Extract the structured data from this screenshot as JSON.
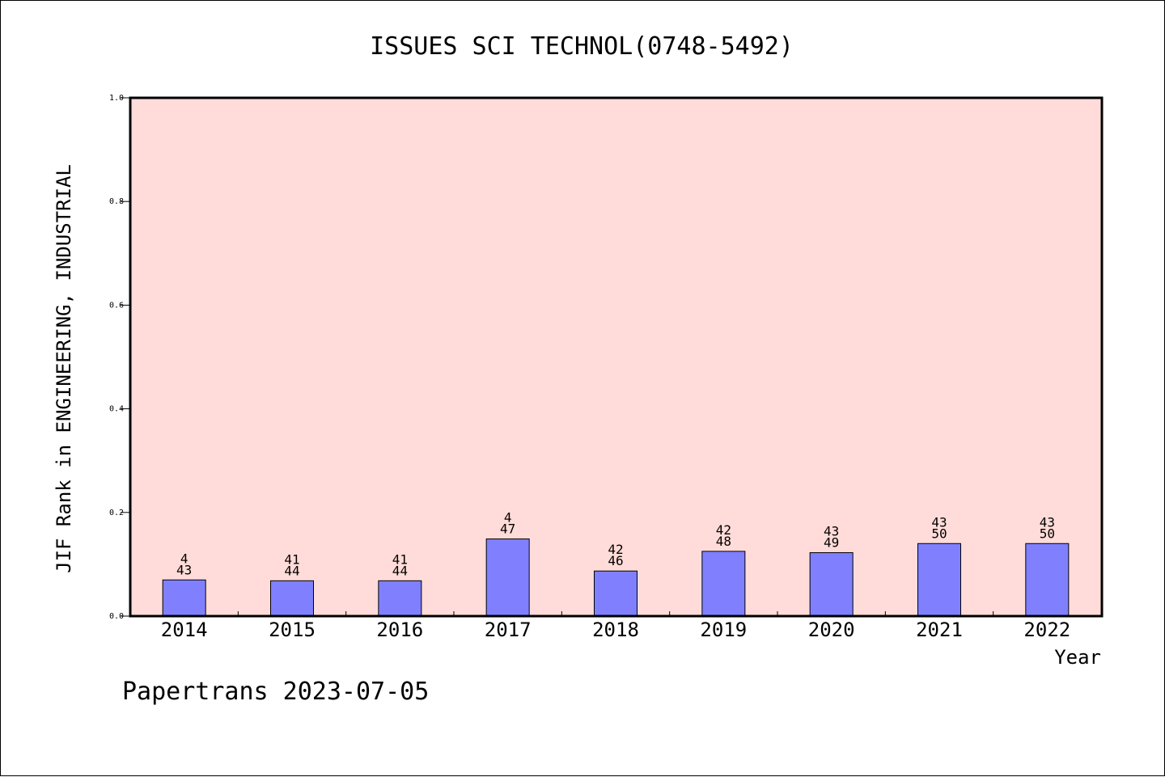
{
  "chart_data": {
    "type": "bar",
    "title": "ISSUES SCI TECHNOL(0748-5492)",
    "xlabel": "Year",
    "ylabel": "JIF Rank in ENGINEERING, INDUSTRIAL",
    "ylim": [
      0,
      1.0
    ],
    "yticks": [
      "0.0",
      "0.2",
      "0.4",
      "0.6",
      "0.8",
      "1.0"
    ],
    "categories": [
      "2014",
      "2015",
      "2016",
      "2017",
      "2018",
      "2019",
      "2020",
      "2021",
      "2022"
    ],
    "values": [
      0.0698,
      0.0682,
      0.0682,
      0.1489,
      0.087,
      0.125,
      0.1224,
      0.14,
      0.14
    ],
    "labels_top": [
      "4",
      "41",
      "41",
      "4",
      "42",
      "42",
      "43",
      "43",
      "43"
    ],
    "labels_bottom": [
      "43",
      "44",
      "44",
      "47",
      "46",
      "48",
      "49",
      "50",
      "50"
    ],
    "grid": false,
    "colors": {
      "bar": "#8080ff",
      "plot_bg": "#ffdcd9",
      "axis": "#000000"
    }
  },
  "footer": {
    "text": "Papertrans 2023-07-05"
  }
}
